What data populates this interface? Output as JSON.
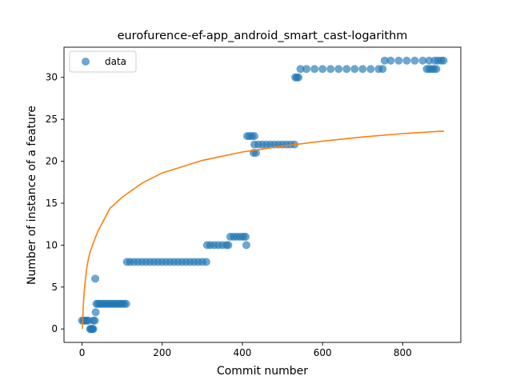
{
  "chart_data": {
    "type": "scatter",
    "title": "eurofurence-ef-app_android_smart_cast-logarithm",
    "xlabel": "Commit number",
    "ylabel": "Number of instance of a feature",
    "xlim": [
      -45,
      945
    ],
    "ylim": [
      -1.6,
      33.6
    ],
    "xticks": [
      0,
      200,
      400,
      600,
      800
    ],
    "yticks": [
      0,
      5,
      10,
      15,
      20,
      25,
      30
    ],
    "grid": false,
    "legend": {
      "position": "top-left",
      "entries": [
        {
          "label": "data",
          "marker": "circle",
          "color": "#1f77b4"
        }
      ]
    },
    "colors": {
      "data": "#1f77b4",
      "fit": "#ff7f0e"
    },
    "series": [
      {
        "name": "data",
        "kind": "scatter",
        "points": [
          [
            0,
            1
          ],
          [
            4,
            1
          ],
          [
            8,
            1
          ],
          [
            12,
            1
          ],
          [
            16,
            1
          ],
          [
            20,
            0
          ],
          [
            22,
            0
          ],
          [
            24,
            0
          ],
          [
            26,
            0
          ],
          [
            28,
            0
          ],
          [
            28,
            1
          ],
          [
            32,
            1
          ],
          [
            33,
            6
          ],
          [
            34,
            2
          ],
          [
            36,
            3
          ],
          [
            40,
            3
          ],
          [
            45,
            3
          ],
          [
            50,
            3
          ],
          [
            55,
            3
          ],
          [
            60,
            3
          ],
          [
            65,
            3
          ],
          [
            70,
            3
          ],
          [
            75,
            3
          ],
          [
            80,
            3
          ],
          [
            85,
            3
          ],
          [
            90,
            3
          ],
          [
            95,
            3
          ],
          [
            100,
            3
          ],
          [
            105,
            3
          ],
          [
            110,
            3
          ],
          [
            112,
            8
          ],
          [
            120,
            8
          ],
          [
            130,
            8
          ],
          [
            140,
            8
          ],
          [
            150,
            8
          ],
          [
            160,
            8
          ],
          [
            170,
            8
          ],
          [
            180,
            8
          ],
          [
            190,
            8
          ],
          [
            200,
            8
          ],
          [
            210,
            8
          ],
          [
            220,
            8
          ],
          [
            230,
            8
          ],
          [
            240,
            8
          ],
          [
            250,
            8
          ],
          [
            260,
            8
          ],
          [
            270,
            8
          ],
          [
            280,
            8
          ],
          [
            290,
            8
          ],
          [
            300,
            8
          ],
          [
            310,
            8
          ],
          [
            312,
            10
          ],
          [
            320,
            10
          ],
          [
            330,
            10
          ],
          [
            340,
            10
          ],
          [
            350,
            10
          ],
          [
            360,
            10
          ],
          [
            365,
            10
          ],
          [
            370,
            11
          ],
          [
            378,
            11
          ],
          [
            386,
            11
          ],
          [
            394,
            11
          ],
          [
            402,
            11
          ],
          [
            408,
            11
          ],
          [
            410,
            10
          ],
          [
            412,
            23
          ],
          [
            418,
            23
          ],
          [
            424,
            23
          ],
          [
            430,
            23
          ],
          [
            428,
            21
          ],
          [
            434,
            21
          ],
          [
            430,
            22
          ],
          [
            440,
            22
          ],
          [
            450,
            22
          ],
          [
            460,
            22
          ],
          [
            470,
            22
          ],
          [
            480,
            22
          ],
          [
            490,
            22
          ],
          [
            500,
            22
          ],
          [
            510,
            22
          ],
          [
            520,
            22
          ],
          [
            530,
            22
          ],
          [
            532,
            30
          ],
          [
            536,
            30
          ],
          [
            540,
            30
          ],
          [
            545,
            31
          ],
          [
            560,
            31
          ],
          [
            580,
            31
          ],
          [
            600,
            31
          ],
          [
            620,
            31
          ],
          [
            640,
            31
          ],
          [
            660,
            31
          ],
          [
            680,
            31
          ],
          [
            700,
            31
          ],
          [
            720,
            31
          ],
          [
            740,
            31
          ],
          [
            750,
            31
          ],
          [
            755,
            32
          ],
          [
            770,
            32
          ],
          [
            790,
            32
          ],
          [
            810,
            32
          ],
          [
            830,
            32
          ],
          [
            850,
            32
          ],
          [
            866,
            32
          ],
          [
            860,
            31
          ],
          [
            866,
            31
          ],
          [
            872,
            31
          ],
          [
            878,
            31
          ],
          [
            884,
            31
          ],
          [
            880,
            32
          ],
          [
            888,
            32
          ],
          [
            896,
            32
          ],
          [
            902,
            32
          ]
        ]
      },
      {
        "name": "fit",
        "kind": "line",
        "points": [
          [
            1,
            0
          ],
          [
            2,
            1.1
          ],
          [
            3,
            2.5
          ],
          [
            5,
            4.3
          ],
          [
            8,
            5.8
          ],
          [
            12,
            7.4
          ],
          [
            16,
            8.4
          ],
          [
            20,
            9.2
          ],
          [
            30,
            10.5
          ],
          [
            40,
            11.7
          ],
          [
            50,
            12.6
          ],
          [
            70,
            14.4
          ],
          [
            100,
            15.7
          ],
          [
            150,
            17.4
          ],
          [
            200,
            18.6
          ],
          [
            300,
            20.1
          ],
          [
            400,
            21.1
          ],
          [
            500,
            21.8
          ],
          [
            600,
            22.4
          ],
          [
            700,
            22.9
          ],
          [
            800,
            23.3
          ],
          [
            903,
            23.6
          ]
        ]
      }
    ]
  }
}
